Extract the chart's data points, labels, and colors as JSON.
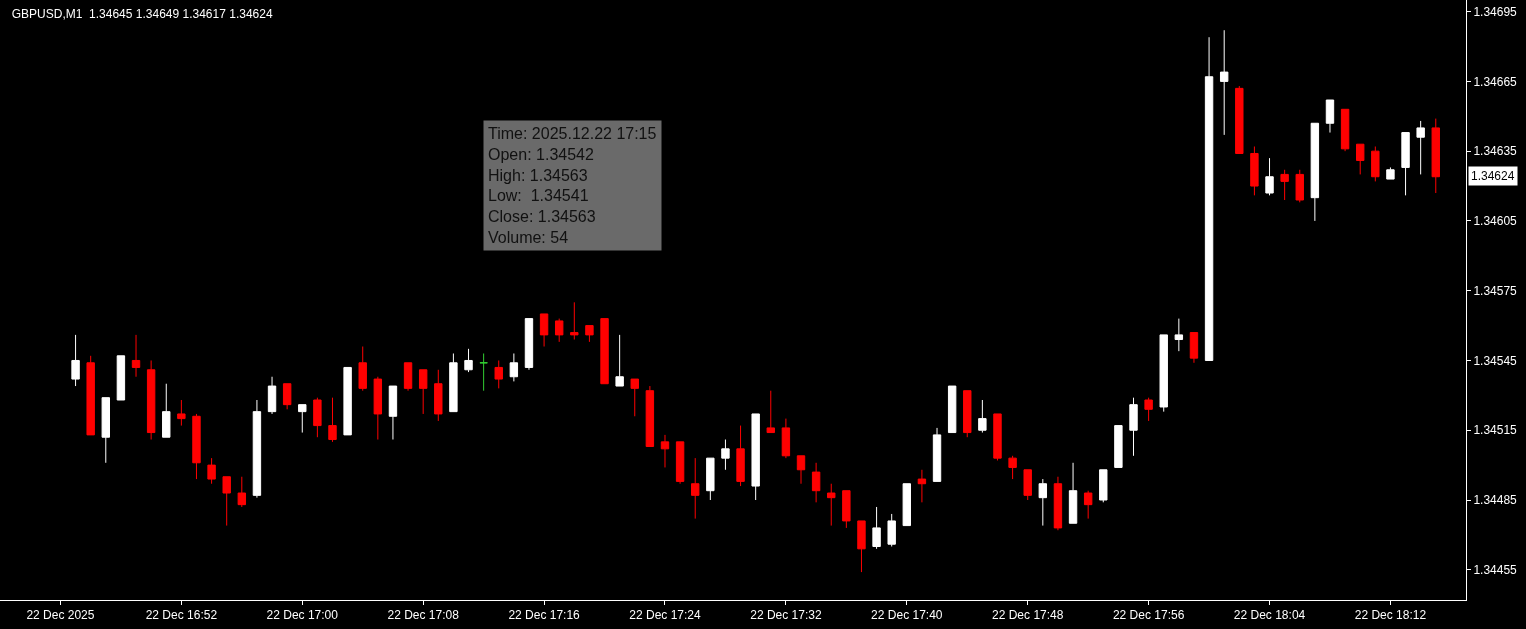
{
  "chart_data": {
    "type": "candlestick",
    "title": "GBPUSD,M1  1.34645 1.34649 1.34617 1.34624",
    "x": [
      "2025-12-22T16:45",
      "2025-12-22T16:46",
      "2025-12-22T16:47",
      "2025-12-22T16:48",
      "2025-12-22T16:49",
      "2025-12-22T16:50",
      "2025-12-22T16:51",
      "2025-12-22T16:52",
      "2025-12-22T16:53",
      "2025-12-22T16:54",
      "2025-12-22T16:55",
      "2025-12-22T16:56",
      "2025-12-22T16:57",
      "2025-12-22T16:58",
      "2025-12-22T16:59",
      "2025-12-22T17:00",
      "2025-12-22T17:01",
      "2025-12-22T17:02",
      "2025-12-22T17:03",
      "2025-12-22T17:04",
      "2025-12-22T17:05",
      "2025-12-22T17:06",
      "2025-12-22T17:07",
      "2025-12-22T17:08",
      "2025-12-22T17:09",
      "2025-12-22T17:10",
      "2025-12-22T17:11",
      "2025-12-22T17:12",
      "2025-12-22T17:13",
      "2025-12-22T17:14",
      "2025-12-22T17:15",
      "2025-12-22T17:16",
      "2025-12-22T17:17",
      "2025-12-22T17:18",
      "2025-12-22T17:19",
      "2025-12-22T17:20",
      "2025-12-22T17:21",
      "2025-12-22T17:22",
      "2025-12-22T17:23",
      "2025-12-22T17:24",
      "2025-12-22T17:25",
      "2025-12-22T17:26",
      "2025-12-22T17:27",
      "2025-12-22T17:28",
      "2025-12-22T17:29",
      "2025-12-22T17:30",
      "2025-12-22T17:31",
      "2025-12-22T17:32",
      "2025-12-22T17:33",
      "2025-12-22T17:34",
      "2025-12-22T17:35",
      "2025-12-22T17:36",
      "2025-12-22T17:37",
      "2025-12-22T17:38",
      "2025-12-22T17:39",
      "2025-12-22T17:40",
      "2025-12-22T17:41",
      "2025-12-22T17:42",
      "2025-12-22T17:43",
      "2025-12-22T17:44",
      "2025-12-22T17:45",
      "2025-12-22T17:46",
      "2025-12-22T17:47",
      "2025-12-22T17:48",
      "2025-12-22T17:49",
      "2025-12-22T17:50",
      "2025-12-22T17:51",
      "2025-12-22T17:52",
      "2025-12-22T17:53",
      "2025-12-22T17:54",
      "2025-12-22T17:55",
      "2025-12-22T17:56",
      "2025-12-22T17:57",
      "2025-12-22T17:58",
      "2025-12-22T17:59",
      "2025-12-22T18:00",
      "2025-12-22T18:01",
      "2025-12-22T18:02",
      "2025-12-22T18:03",
      "2025-12-22T18:04",
      "2025-12-22T18:05",
      "2025-12-22T18:06",
      "2025-12-22T18:07",
      "2025-12-22T18:08",
      "2025-12-22T18:09",
      "2025-12-22T18:10",
      "2025-12-22T18:11",
      "2025-12-22T18:12",
      "2025-12-22T18:13",
      "2025-12-22T18:14",
      "2025-12-22T18:15"
    ],
    "ohlc": [
      [
        1.34537,
        1.34556,
        1.34534,
        1.34545
      ],
      [
        1.34544,
        1.34547,
        1.34513,
        1.34513
      ],
      [
        1.34512,
        1.34529,
        1.34501,
        1.34529
      ],
      [
        1.34528,
        1.34547,
        1.34528,
        1.34547
      ],
      [
        1.34545,
        1.34556,
        1.34538,
        1.34542
      ],
      [
        1.34541,
        1.34545,
        1.34511,
        1.34514
      ],
      [
        1.34512,
        1.34535,
        1.34512,
        1.34523
      ],
      [
        1.34522,
        1.34528,
        1.34517,
        1.3452
      ],
      [
        1.34521,
        1.34522,
        1.34494,
        1.34501
      ],
      [
        1.345,
        1.34503,
        1.34492,
        1.34494
      ],
      [
        1.34495,
        1.34495,
        1.34474,
        1.34488
      ],
      [
        1.34488,
        1.34495,
        1.34482,
        1.34483
      ],
      [
        1.34487,
        1.34528,
        1.34486,
        1.34523
      ],
      [
        1.34523,
        1.34538,
        1.34522,
        1.34534
      ],
      [
        1.34535,
        1.34535,
        1.34524,
        1.34526
      ],
      [
        1.34523,
        1.34526,
        1.34514,
        1.34526
      ],
      [
        1.34528,
        1.34529,
        1.34512,
        1.34517
      ],
      [
        1.34517,
        1.34529,
        1.3451,
        1.34511
      ],
      [
        1.34513,
        1.34542,
        1.34513,
        1.34542
      ],
      [
        1.34544,
        1.34551,
        1.34532,
        1.34533
      ],
      [
        1.34537,
        1.34538,
        1.34511,
        1.34522
      ],
      [
        1.34521,
        1.34534,
        1.34511,
        1.34534
      ],
      [
        1.34544,
        1.34544,
        1.34532,
        1.34533
      ],
      [
        1.34541,
        1.34541,
        1.34522,
        1.34533
      ],
      [
        1.34535,
        1.34541,
        1.34519,
        1.34522
      ],
      [
        1.34523,
        1.34548,
        1.34523,
        1.34544
      ],
      [
        1.34541,
        1.3455,
        1.3454,
        1.34545
      ],
      [
        1.34544,
        1.34548,
        1.34532,
        1.34544
      ],
      [
        1.34542,
        1.34545,
        1.34533,
        1.34537
      ],
      [
        1.34538,
        1.34548,
        1.34536,
        1.34544
      ],
      [
        1.34542,
        1.34563,
        1.34541,
        1.34563
      ],
      [
        1.34565,
        1.34565,
        1.34551,
        1.34556
      ],
      [
        1.34562,
        1.34563,
        1.34553,
        1.34556
      ],
      [
        1.34557,
        1.3457,
        1.34554,
        1.34556
      ],
      [
        1.3456,
        1.3456,
        1.34553,
        1.34556
      ],
      [
        1.34563,
        1.34563,
        1.34535,
        1.34535
      ],
      [
        1.34534,
        1.34556,
        1.34534,
        1.34538
      ],
      [
        1.34537,
        1.34537,
        1.34521,
        1.34533
      ],
      [
        1.34532,
        1.34534,
        1.34508,
        1.34508
      ],
      [
        1.3451,
        1.34513,
        1.34499,
        1.34507
      ],
      [
        1.3451,
        1.3451,
        1.34492,
        1.34493
      ],
      [
        1.34492,
        1.34503,
        1.34477,
        1.34487
      ],
      [
        1.34489,
        1.34503,
        1.34485,
        1.34503
      ],
      [
        1.34503,
        1.34511,
        1.34498,
        1.34507
      ],
      [
        1.34507,
        1.34517,
        1.34491,
        1.34493
      ],
      [
        1.34491,
        1.34522,
        1.34485,
        1.34522
      ],
      [
        1.34516,
        1.34532,
        1.34514,
        1.34514
      ],
      [
        1.34516,
        1.3452,
        1.34503,
        1.34504
      ],
      [
        1.34504,
        1.34504,
        1.34492,
        1.34498
      ],
      [
        1.34497,
        1.34501,
        1.34484,
        1.34489
      ],
      [
        1.34488,
        1.34492,
        1.34474,
        1.34486
      ],
      [
        1.34489,
        1.34489,
        1.34473,
        1.34476
      ],
      [
        1.34476,
        1.34476,
        1.34454,
        1.34464
      ],
      [
        1.34465,
        1.34482,
        1.34464,
        1.34473
      ],
      [
        1.34466,
        1.34479,
        1.34465,
        1.34476
      ],
      [
        1.34474,
        1.34492,
        1.34474,
        1.34492
      ],
      [
        1.34494,
        1.34498,
        1.34484,
        1.34492
      ],
      [
        1.34493,
        1.34516,
        1.34493,
        1.34513
      ],
      [
        1.34514,
        1.34534,
        1.34514,
        1.34534
      ],
      [
        1.34532,
        1.34532,
        1.34512,
        1.34514
      ],
      [
        1.34515,
        1.34528,
        1.34514,
        1.3452
      ],
      [
        1.34522,
        1.34522,
        1.34502,
        1.34503
      ],
      [
        1.34503,
        1.34504,
        1.34494,
        1.34499
      ],
      [
        1.34498,
        1.34498,
        1.34485,
        1.34487
      ],
      [
        1.34486,
        1.34494,
        1.34474,
        1.34492
      ],
      [
        1.34492,
        1.34495,
        1.34472,
        1.34473
      ],
      [
        1.34475,
        1.34501,
        1.34475,
        1.34489
      ],
      [
        1.34488,
        1.34489,
        1.34477,
        1.34483
      ],
      [
        1.34485,
        1.34498,
        1.34484,
        1.34498
      ],
      [
        1.34499,
        1.34517,
        1.34499,
        1.34517
      ],
      [
        1.34515,
        1.34529,
        1.34504,
        1.34526
      ],
      [
        1.34528,
        1.34529,
        1.34519,
        1.34524
      ],
      [
        1.34525,
        1.34556,
        1.34523,
        1.34556
      ],
      [
        1.34554,
        1.34563,
        1.34549,
        1.34556
      ],
      [
        1.34557,
        1.34557,
        1.34544,
        1.34546
      ],
      [
        1.34545,
        1.34684,
        1.34545,
        1.34667
      ],
      [
        1.34665,
        1.34687,
        1.34642,
        1.34669
      ],
      [
        1.34662,
        1.34663,
        1.34634,
        1.34634
      ],
      [
        1.34634,
        1.34637,
        1.34616,
        1.3462
      ],
      [
        1.34617,
        1.34632,
        1.34616,
        1.34624
      ],
      [
        1.34625,
        1.34627,
        1.34614,
        1.34622
      ],
      [
        1.34625,
        1.34627,
        1.34613,
        1.34614
      ],
      [
        1.34615,
        1.34647,
        1.34605,
        1.34647
      ],
      [
        1.34647,
        1.34657,
        1.34643,
        1.34657
      ],
      [
        1.34653,
        1.34653,
        1.34635,
        1.34636
      ],
      [
        1.34638,
        1.34638,
        1.34625,
        1.34631
      ],
      [
        1.34635,
        1.34637,
        1.34622,
        1.34624
      ],
      [
        1.34623,
        1.34628,
        1.34623,
        1.34627
      ],
      [
        1.34628,
        1.34643,
        1.34616,
        1.34643
      ],
      [
        1.34641,
        1.34648,
        1.34625,
        1.34645
      ],
      [
        1.34645,
        1.34649,
        1.34617,
        1.34624
      ]
    ],
    "colors": [
      "#ffffff",
      "#ff0000",
      "#ffffff",
      "#ffffff",
      "#ff0000",
      "#ff0000",
      "#ffffff",
      "#ff0000",
      "#ff0000",
      "#ff0000",
      "#ff0000",
      "#ff0000",
      "#ffffff",
      "#ffffff",
      "#ff0000",
      "#ffffff",
      "#ff0000",
      "#ff0000",
      "#ffffff",
      "#ff0000",
      "#ff0000",
      "#ffffff",
      "#ff0000",
      "#ff0000",
      "#ff0000",
      "#ffffff",
      "#ffffff",
      "#32cd32",
      "#ff0000",
      "#ffffff",
      "#ffffff",
      "#ff0000",
      "#ff0000",
      "#ff0000",
      "#ff0000",
      "#ff0000",
      "#ffffff",
      "#ff0000",
      "#ff0000",
      "#ff0000",
      "#ff0000",
      "#ff0000",
      "#ffffff",
      "#ffffff",
      "#ff0000",
      "#ffffff",
      "#ff0000",
      "#ff0000",
      "#ff0000",
      "#ff0000",
      "#ff0000",
      "#ff0000",
      "#ff0000",
      "#ffffff",
      "#ffffff",
      "#ffffff",
      "#ff0000",
      "#ffffff",
      "#ffffff",
      "#ff0000",
      "#ffffff",
      "#ff0000",
      "#ff0000",
      "#ff0000",
      "#ffffff",
      "#ff0000",
      "#ffffff",
      "#ff0000",
      "#ffffff",
      "#ffffff",
      "#ffffff",
      "#ff0000",
      "#ffffff",
      "#ffffff",
      "#ff0000",
      "#ffffff",
      "#ffffff",
      "#ff0000",
      "#ff0000",
      "#ffffff",
      "#ff0000",
      "#ff0000",
      "#ffffff",
      "#ffffff",
      "#ff0000",
      "#ff0000",
      "#ff0000",
      "#ffffff",
      "#ffffff",
      "#ffffff",
      "#ff0000"
    ],
    "xlim": [
      "2025-12-22T16:40",
      "2025-12-22T18:17"
    ],
    "xticks": [
      {
        "value": "2025-12-22T16:44",
        "label": "22 Dec 2025"
      },
      {
        "value": "2025-12-22T16:52",
        "label": "22 Dec 16:52"
      },
      {
        "value": "2025-12-22T17:00",
        "label": "22 Dec 17:00"
      },
      {
        "value": "2025-12-22T17:08",
        "label": "22 Dec 17:08"
      },
      {
        "value": "2025-12-22T17:16",
        "label": "22 Dec 17:16"
      },
      {
        "value": "2025-12-22T17:24",
        "label": "22 Dec 17:24"
      },
      {
        "value": "2025-12-22T17:32",
        "label": "22 Dec 17:32"
      },
      {
        "value": "2025-12-22T17:40",
        "label": "22 Dec 17:40"
      },
      {
        "value": "2025-12-22T17:48",
        "label": "22 Dec 17:48"
      },
      {
        "value": "2025-12-22T17:56",
        "label": "22 Dec 17:56"
      },
      {
        "value": "2025-12-22T18:04",
        "label": "22 Dec 18:04"
      },
      {
        "value": "2025-12-22T18:12",
        "label": "22 Dec 18:12"
      }
    ],
    "ylim": [
      1.34442,
      1.347
    ],
    "yticks": [
      1.34695,
      1.34665,
      1.34635,
      1.34605,
      1.34575,
      1.34545,
      1.34515,
      1.34485,
      1.34455
    ],
    "annotations": [
      "Time: 2025.12.22 17:15\nOpen: 1.34542\nHigh: 1.34563\nLow:  1.34541\nClose: 1.34563\nVolume: 54",
      "1.34624"
    ],
    "grid": false
  }
}
